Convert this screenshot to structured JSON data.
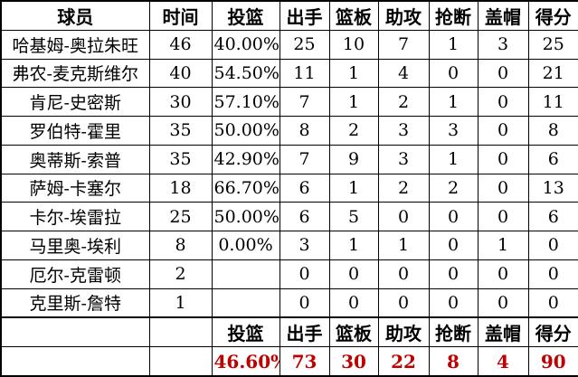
{
  "chart_data": {
    "type": "table",
    "columns": [
      "球员",
      "时间",
      "投篮",
      "出手",
      "篮板",
      "助攻",
      "抢断",
      "盖帽",
      "得分"
    ],
    "rows": [
      [
        "哈基姆-奥拉朱旺",
        "46",
        "40.00%",
        "25",
        "10",
        "7",
        "1",
        "3",
        "25"
      ],
      [
        "弗农-麦克斯维尔",
        "40",
        "54.50%",
        "11",
        "1",
        "4",
        "0",
        "0",
        "21"
      ],
      [
        "肯尼-史密斯",
        "30",
        "57.10%",
        "7",
        "1",
        "2",
        "1",
        "0",
        "11"
      ],
      [
        "罗伯特-霍里",
        "35",
        "50.00%",
        "8",
        "2",
        "3",
        "3",
        "0",
        "8"
      ],
      [
        "奥蒂斯-索普",
        "35",
        "42.90%",
        "7",
        "9",
        "3",
        "1",
        "0",
        "6"
      ],
      [
        "萨姆-卡塞尔",
        "18",
        "66.70%",
        "6",
        "1",
        "2",
        "2",
        "0",
        "13"
      ],
      [
        "卡尔-埃雷拉",
        "25",
        "50.00%",
        "6",
        "5",
        "0",
        "0",
        "0",
        "6"
      ],
      [
        "马里奥-埃利",
        "8",
        "0.00%",
        "3",
        "1",
        "1",
        "0",
        "1",
        "0"
      ],
      [
        "厄尔-克雷顿",
        "2",
        "",
        "0",
        "0",
        "0",
        "0",
        "0",
        "0"
      ],
      [
        "克里斯-詹特",
        "1",
        "",
        "0",
        "0",
        "0",
        "0",
        "0",
        "0"
      ]
    ],
    "footer_labels": [
      "",
      "",
      "投篮",
      "出手",
      "篮板",
      "助攻",
      "抢断",
      "盖帽",
      "得分"
    ],
    "totals": [
      "",
      "",
      "46.60%",
      "73",
      "30",
      "22",
      "8",
      "4",
      "90"
    ],
    "layout_hints": {
      "grid": true,
      "header_bold": true,
      "totals_bold": true
    }
  },
  "colors": {
    "totals_text": "#c00000",
    "border": "#000000",
    "text": "#000000",
    "background": "#ffffff"
  }
}
